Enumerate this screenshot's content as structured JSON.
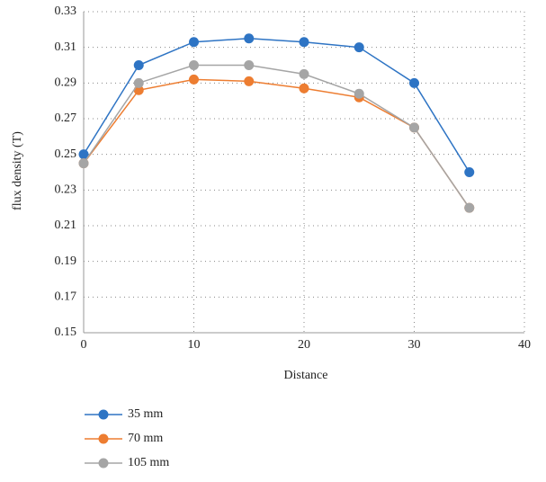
{
  "chart_data": {
    "type": "line",
    "x_label": "Distance",
    "y_label": "flux density (T)",
    "x": [
      0,
      5,
      10,
      15,
      20,
      25,
      30,
      35
    ],
    "series": [
      {
        "name": "35 mm",
        "color": "#2e74c4",
        "values": [
          0.25,
          0.3,
          0.313,
          0.315,
          0.313,
          0.31,
          0.29,
          0.24
        ]
      },
      {
        "name": "70 mm",
        "color": "#ed7d31",
        "values": [
          0.245,
          0.286,
          0.292,
          0.291,
          0.287,
          0.282,
          0.265,
          0.22
        ]
      },
      {
        "name": "105 mm",
        "color": "#a5a5a5",
        "values": [
          0.245,
          0.29,
          0.3,
          0.3,
          0.295,
          0.284,
          0.265,
          0.22
        ]
      }
    ],
    "xlim": [
      0,
      40
    ],
    "xticks": [
      0,
      10,
      20,
      30,
      40
    ],
    "ylim": [
      0.15,
      0.33
    ],
    "yticks": [
      0.15,
      0.17,
      0.19,
      0.21,
      0.23,
      0.25,
      0.27,
      0.29,
      0.31,
      0.33
    ],
    "grid": true,
    "legend": "bottom-left"
  }
}
